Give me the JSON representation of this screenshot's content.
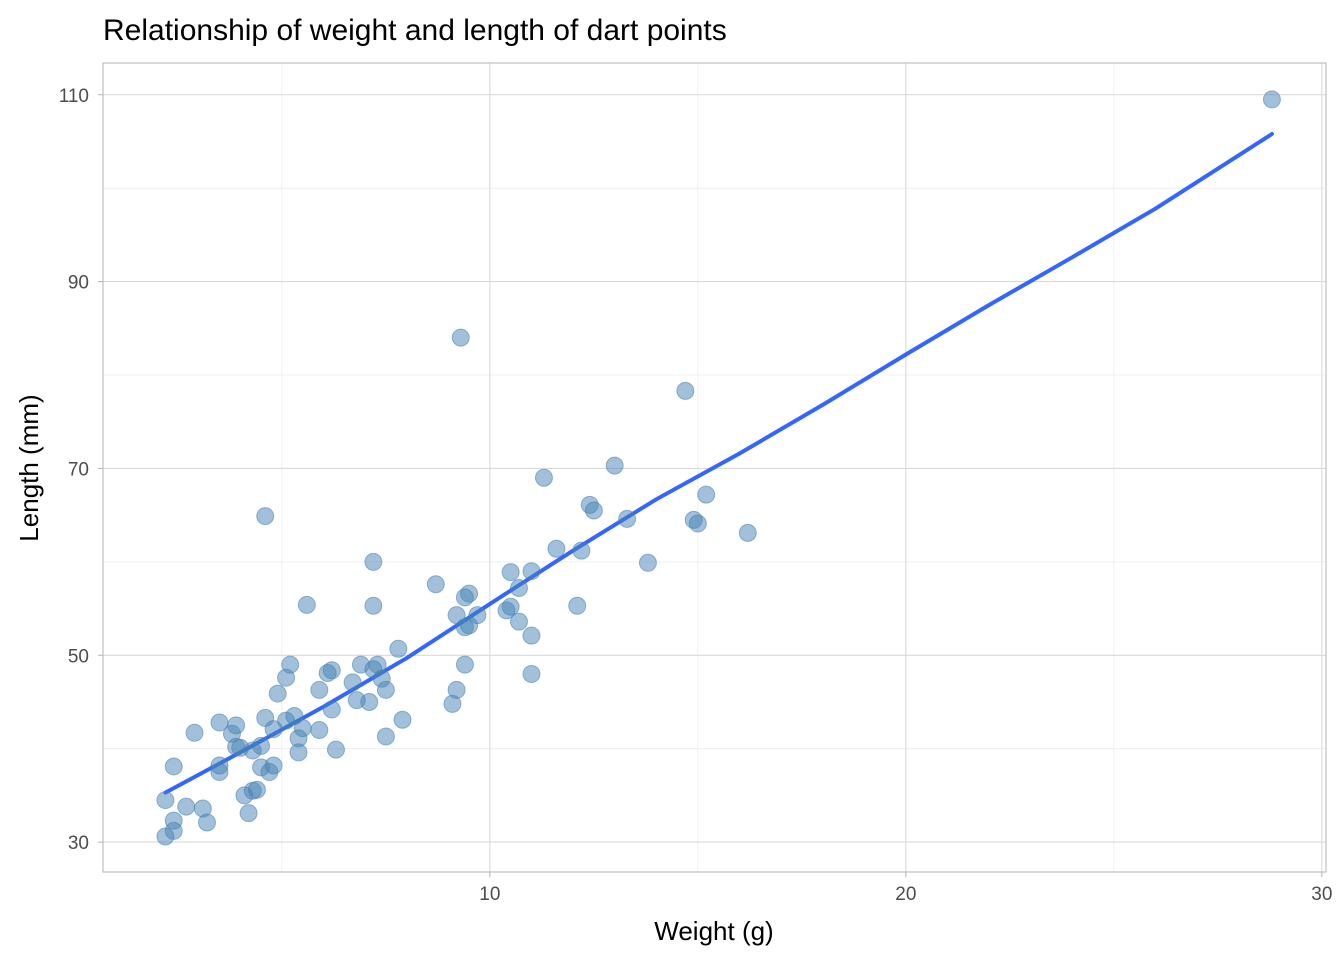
{
  "chart_data": {
    "type": "scatter",
    "title": "Relationship of weight and length of dart points",
    "xlabel": "Weight (g)",
    "ylabel": "Length (mm)",
    "xlim": [
      0.7,
      30.1
    ],
    "ylim": [
      26.8,
      113.4
    ],
    "x_ticks": [
      10,
      20,
      30
    ],
    "x_tick_labels": [
      "10",
      "20",
      "30"
    ],
    "y_ticks": [
      30,
      50,
      70,
      90,
      110
    ],
    "y_tick_labels": [
      "30",
      "50",
      "70",
      "90",
      "110"
    ],
    "grid": true,
    "colors": {
      "points": "#4682b4",
      "fit_line": "#3366ff",
      "grid": "#d9d9d9",
      "panel_border": "#b3b3b3"
    },
    "points": [
      {
        "x": 2.2,
        "y": 30.6
      },
      {
        "x": 2.4,
        "y": 31.2
      },
      {
        "x": 2.4,
        "y": 32.3
      },
      {
        "x": 2.7,
        "y": 33.8
      },
      {
        "x": 2.2,
        "y": 34.5
      },
      {
        "x": 3.1,
        "y": 33.6
      },
      {
        "x": 3.2,
        "y": 32.1
      },
      {
        "x": 2.4,
        "y": 38.1
      },
      {
        "x": 2.9,
        "y": 41.7
      },
      {
        "x": 3.5,
        "y": 37.5
      },
      {
        "x": 3.5,
        "y": 38.2
      },
      {
        "x": 3.5,
        "y": 42.8
      },
      {
        "x": 3.8,
        "y": 41.6
      },
      {
        "x": 3.9,
        "y": 40.2
      },
      {
        "x": 3.9,
        "y": 42.5
      },
      {
        "x": 4.0,
        "y": 40.1
      },
      {
        "x": 4.1,
        "y": 35.0
      },
      {
        "x": 4.2,
        "y": 33.1
      },
      {
        "x": 4.3,
        "y": 35.5
      },
      {
        "x": 4.4,
        "y": 35.6
      },
      {
        "x": 4.3,
        "y": 39.8
      },
      {
        "x": 4.5,
        "y": 40.3
      },
      {
        "x": 4.5,
        "y": 38.0
      },
      {
        "x": 4.6,
        "y": 43.3
      },
      {
        "x": 4.7,
        "y": 37.5
      },
      {
        "x": 4.8,
        "y": 38.2
      },
      {
        "x": 4.8,
        "y": 42.1
      },
      {
        "x": 4.9,
        "y": 45.9
      },
      {
        "x": 5.1,
        "y": 47.6
      },
      {
        "x": 5.1,
        "y": 43.0
      },
      {
        "x": 5.2,
        "y": 49.0
      },
      {
        "x": 5.3,
        "y": 43.5
      },
      {
        "x": 5.4,
        "y": 41.1
      },
      {
        "x": 5.4,
        "y": 39.6
      },
      {
        "x": 5.5,
        "y": 42.2
      },
      {
        "x": 5.6,
        "y": 55.4
      },
      {
        "x": 4.6,
        "y": 64.9
      },
      {
        "x": 5.9,
        "y": 42.0
      },
      {
        "x": 5.9,
        "y": 46.3
      },
      {
        "x": 6.1,
        "y": 48.1
      },
      {
        "x": 6.2,
        "y": 48.4
      },
      {
        "x": 6.2,
        "y": 44.2
      },
      {
        "x": 6.3,
        "y": 39.9
      },
      {
        "x": 6.7,
        "y": 47.1
      },
      {
        "x": 6.8,
        "y": 45.2
      },
      {
        "x": 6.9,
        "y": 49.0
      },
      {
        "x": 7.1,
        "y": 45.0
      },
      {
        "x": 7.2,
        "y": 48.5
      },
      {
        "x": 7.3,
        "y": 49.0
      },
      {
        "x": 7.4,
        "y": 47.5
      },
      {
        "x": 7.5,
        "y": 46.3
      },
      {
        "x": 7.5,
        "y": 41.3
      },
      {
        "x": 7.2,
        "y": 55.3
      },
      {
        "x": 7.2,
        "y": 60.0
      },
      {
        "x": 7.8,
        "y": 50.7
      },
      {
        "x": 7.9,
        "y": 43.1
      },
      {
        "x": 8.7,
        "y": 57.6
      },
      {
        "x": 9.1,
        "y": 44.8
      },
      {
        "x": 9.2,
        "y": 46.3
      },
      {
        "x": 9.2,
        "y": 54.3
      },
      {
        "x": 9.4,
        "y": 56.2
      },
      {
        "x": 9.5,
        "y": 56.6
      },
      {
        "x": 9.4,
        "y": 53.0
      },
      {
        "x": 9.5,
        "y": 53.2
      },
      {
        "x": 9.7,
        "y": 54.3
      },
      {
        "x": 9.4,
        "y": 49.0
      },
      {
        "x": 9.3,
        "y": 84.0
      },
      {
        "x": 10.4,
        "y": 54.8
      },
      {
        "x": 10.5,
        "y": 55.2
      },
      {
        "x": 10.5,
        "y": 58.9
      },
      {
        "x": 10.7,
        "y": 57.2
      },
      {
        "x": 10.7,
        "y": 53.6
      },
      {
        "x": 11.0,
        "y": 52.1
      },
      {
        "x": 11.0,
        "y": 59.0
      },
      {
        "x": 11.0,
        "y": 48.0
      },
      {
        "x": 11.3,
        "y": 69.0
      },
      {
        "x": 11.6,
        "y": 61.4
      },
      {
        "x": 12.1,
        "y": 55.3
      },
      {
        "x": 12.2,
        "y": 61.2
      },
      {
        "x": 12.4,
        "y": 66.1
      },
      {
        "x": 12.5,
        "y": 65.5
      },
      {
        "x": 13.0,
        "y": 70.3
      },
      {
        "x": 13.3,
        "y": 64.6
      },
      {
        "x": 13.8,
        "y": 59.9
      },
      {
        "x": 14.7,
        "y": 78.3
      },
      {
        "x": 14.9,
        "y": 64.5
      },
      {
        "x": 15.0,
        "y": 64.1
      },
      {
        "x": 15.2,
        "y": 67.2
      },
      {
        "x": 16.2,
        "y": 63.1
      },
      {
        "x": 28.8,
        "y": 109.5
      }
    ],
    "fit_line": [
      {
        "x": 2.2,
        "y": 35.3
      },
      {
        "x": 4.0,
        "y": 39.6
      },
      {
        "x": 6.0,
        "y": 44.5
      },
      {
        "x": 8.0,
        "y": 49.7
      },
      {
        "x": 10.0,
        "y": 55.5
      },
      {
        "x": 12.0,
        "y": 61.2
      },
      {
        "x": 14.0,
        "y": 66.7
      },
      {
        "x": 16.0,
        "y": 71.6
      },
      {
        "x": 18.0,
        "y": 76.8
      },
      {
        "x": 20.0,
        "y": 82.2
      },
      {
        "x": 22.0,
        "y": 87.5
      },
      {
        "x": 24.0,
        "y": 92.6
      },
      {
        "x": 26.0,
        "y": 97.8
      },
      {
        "x": 28.8,
        "y": 105.8
      }
    ]
  }
}
